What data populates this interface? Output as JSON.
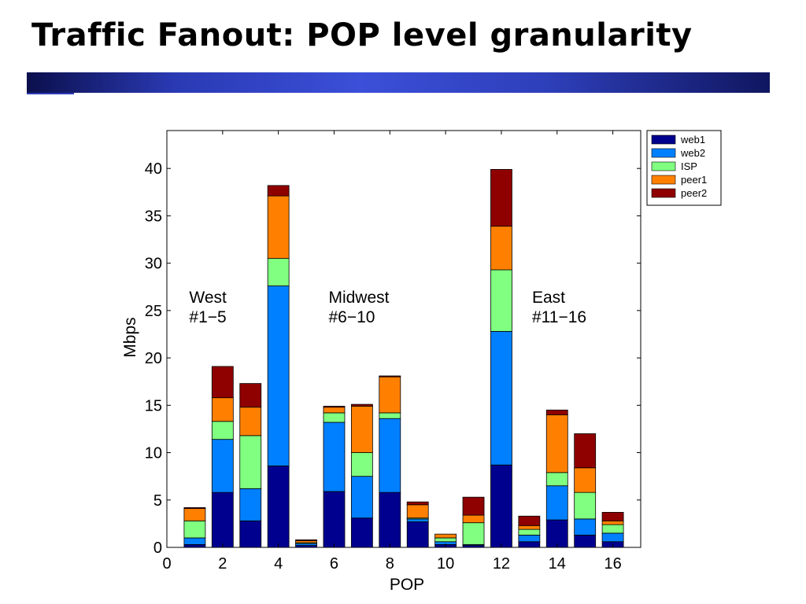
{
  "slide": {
    "title": "Traffic Fanout: POP level granularity"
  },
  "chart_data": {
    "type": "bar",
    "stacked": true,
    "x": [
      1,
      2,
      3,
      4,
      5,
      6,
      7,
      8,
      9,
      10,
      11,
      12,
      13,
      14,
      15,
      16
    ],
    "xlabel": "POP",
    "ylabel": "Mbps",
    "xlim": [
      0,
      17
    ],
    "ylim": [
      0,
      44
    ],
    "xticks": [
      0,
      2,
      4,
      6,
      8,
      10,
      12,
      14,
      16
    ],
    "yticks": [
      0,
      5,
      10,
      15,
      20,
      25,
      30,
      35,
      40
    ],
    "legend_position": "outside-top-right",
    "grid": false,
    "series": [
      {
        "name": "web1",
        "color": "#00008f",
        "values": [
          0.3,
          5.8,
          2.8,
          8.6,
          0.2,
          5.9,
          3.1,
          5.8,
          2.7,
          0.3,
          0.2,
          8.7,
          0.6,
          2.9,
          1.3,
          0.6
        ]
      },
      {
        "name": "web2",
        "color": "#0080ff",
        "values": [
          0.7,
          5.6,
          3.4,
          19.0,
          0.2,
          7.3,
          4.4,
          7.8,
          0.3,
          0.3,
          0.1,
          14.1,
          0.7,
          3.6,
          1.7,
          0.9
        ]
      },
      {
        "name": "ISP",
        "color": "#80ff80",
        "values": [
          1.8,
          1.9,
          5.6,
          2.9,
          0.1,
          1.0,
          2.5,
          0.6,
          0.1,
          0.4,
          2.3,
          6.5,
          0.6,
          1.4,
          2.8,
          0.9
        ]
      },
      {
        "name": "peer1",
        "color": "#ff8000",
        "values": [
          1.3,
          2.5,
          3.0,
          6.6,
          0.2,
          0.6,
          4.9,
          3.8,
          1.4,
          0.4,
          0.8,
          4.6,
          0.4,
          6.1,
          2.6,
          0.4
        ]
      },
      {
        "name": "peer2",
        "color": "#8f0000",
        "values": [
          0.1,
          3.3,
          2.5,
          1.1,
          0.1,
          0.1,
          0.2,
          0.1,
          0.3,
          0.0,
          1.9,
          6.0,
          1.0,
          0.5,
          3.6,
          0.9
        ]
      }
    ],
    "annotations": [
      {
        "lines": [
          "West",
          "#1−5"
        ],
        "x": 1.0,
        "y": 25.8
      },
      {
        "lines": [
          "Midwest",
          "#6−10"
        ],
        "x": 6.0,
        "y": 25.8
      },
      {
        "lines": [
          "East",
          "#11−16"
        ],
        "x": 13.3,
        "y": 25.8
      }
    ]
  }
}
